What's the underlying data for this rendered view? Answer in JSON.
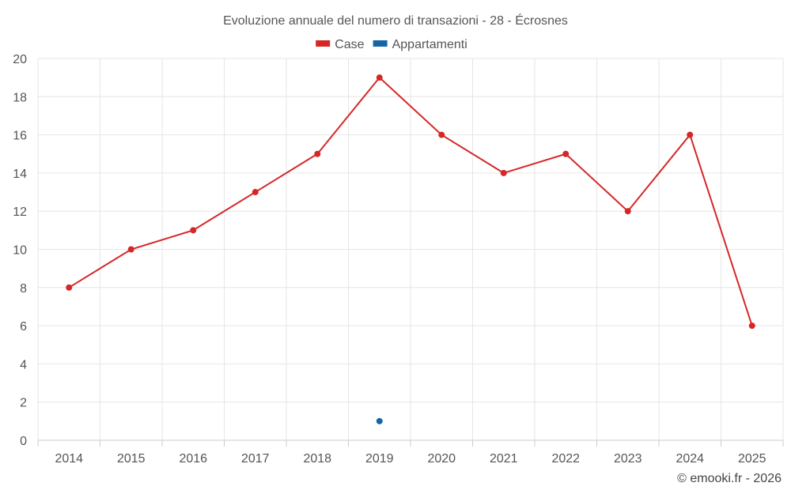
{
  "chart_data": {
    "type": "line",
    "title": "Evoluzione annuale del numero di transazioni - 28 - Écrosnes",
    "categories": [
      "2014",
      "2015",
      "2016",
      "2017",
      "2018",
      "2019",
      "2020",
      "2021",
      "2022",
      "2023",
      "2024",
      "2025"
    ],
    "series": [
      {
        "name": "Case",
        "color": "#d62728",
        "values": [
          8,
          10,
          11,
          13,
          15,
          19,
          16,
          14,
          15,
          12,
          16,
          6
        ]
      },
      {
        "name": "Appartamenti",
        "color": "#1565a6",
        "values": [
          null,
          null,
          null,
          null,
          null,
          1,
          null,
          null,
          null,
          null,
          null,
          null
        ]
      }
    ],
    "xlabel": "",
    "ylabel": "",
    "ylim": [
      0,
      20
    ],
    "yticks": [
      0,
      2,
      4,
      6,
      8,
      10,
      12,
      14,
      16,
      18,
      20
    ],
    "grid": true,
    "legend_position": "top-center"
  },
  "credit": "© emooki.fr - 2026"
}
